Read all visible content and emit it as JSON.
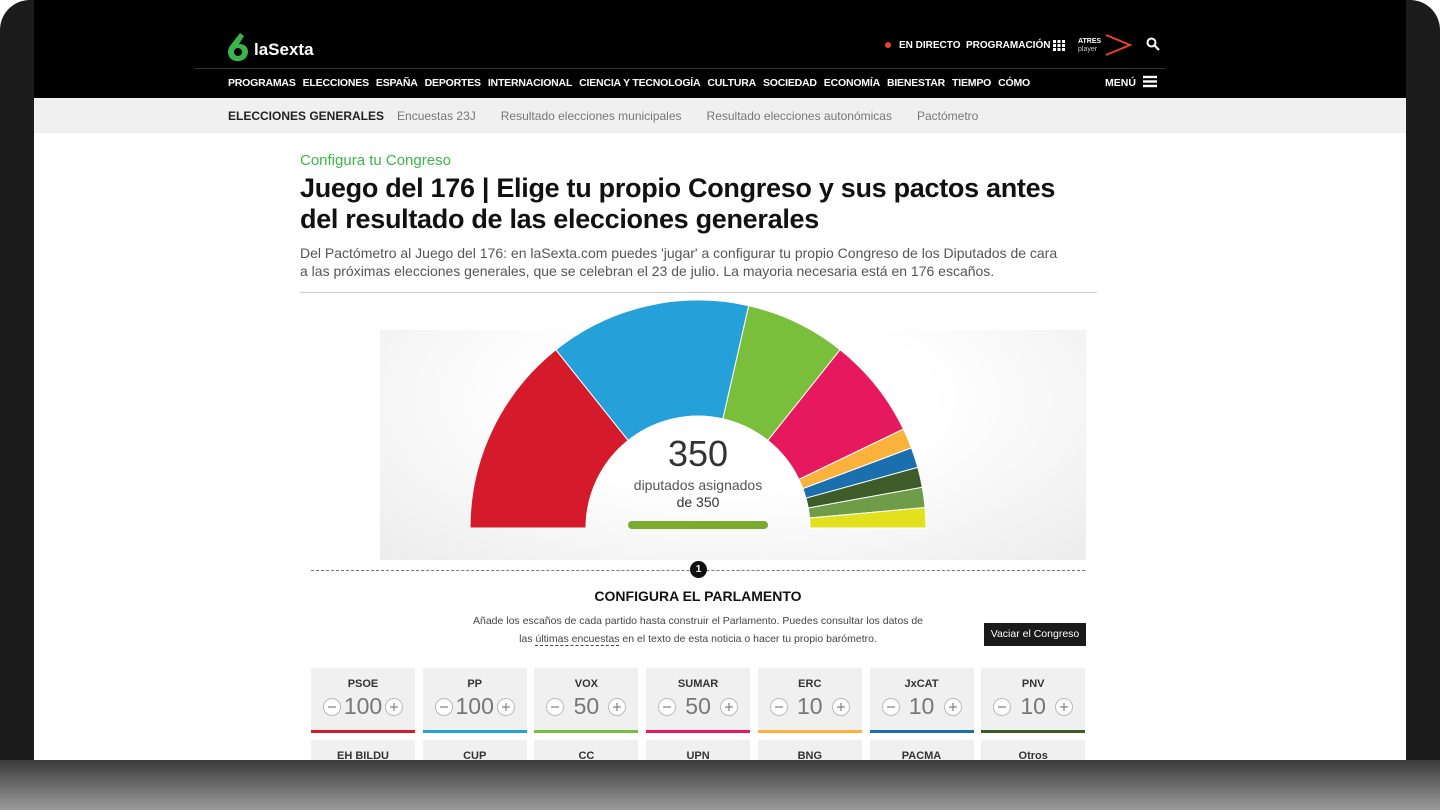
{
  "header": {
    "logo": "laSexta",
    "live": "EN DIRECTO",
    "schedule": "PROGRAMACIÓN",
    "player_top": "ATRES",
    "player_bottom": "player",
    "nav": [
      "PROGRAMAS",
      "ELECCIONES",
      "ESPAÑA",
      "DEPORTES",
      "INTERNACIONAL",
      "CIENCIA Y TECNOLOGÍA",
      "CULTURA",
      "SOCIEDAD",
      "ECONOMÍA",
      "BIENESTAR",
      "TIEMPO",
      "CÓMO"
    ],
    "menu": "MENÚ"
  },
  "subnav": {
    "active": "ELECCIONES GENERALES",
    "items": [
      "Encuestas 23J",
      "Resultado elecciones municipales",
      "Resultado elecciones autonómicas",
      "Pactómetro"
    ]
  },
  "article": {
    "kicker": "Configura tu Congreso",
    "title": "Juego del 176 | Elige tu propio Congreso y sus pactos antes del resultado de las elecciones generales",
    "lead": "Del Pactómetro al Juego del 176: en laSexta.com puedes 'jugar' a configurar tu propio Congreso de los Diputados de cara a las próximas elecciones generales, que se celebran el 23 de julio. La mayoria necesaria está en 176 escaños."
  },
  "chart_data": {
    "type": "hemicycle",
    "assigned": 350,
    "assigned_label": "diputados asignados",
    "of_label": "de 350",
    "parties": [
      {
        "name": "PSOE",
        "seats": 100,
        "color": "#d51a2b"
      },
      {
        "name": "PP",
        "seats": 100,
        "color": "#26a0d8"
      },
      {
        "name": "VOX",
        "seats": 50,
        "color": "#79bf3c"
      },
      {
        "name": "SUMAR",
        "seats": 50,
        "color": "#e6195f"
      },
      {
        "name": "ERC",
        "seats": 10,
        "color": "#fbb23c"
      },
      {
        "name": "JxCAT",
        "seats": 10,
        "color": "#1b6fae"
      },
      {
        "name": "PNV",
        "seats": 10,
        "color": "#3d5c2a"
      },
      {
        "name": "EH BILDU",
        "seats": 10,
        "color": "#6e9c48"
      },
      {
        "name": "CUP",
        "seats": 10,
        "color": "#e3e11e"
      },
      {
        "name": "CC",
        "seats": 0,
        "color": "#f4d03f"
      },
      {
        "name": "UPN",
        "seats": 0,
        "color": "#2f4f8f"
      },
      {
        "name": "BNG",
        "seats": 0,
        "color": "#7fb5e0"
      },
      {
        "name": "PACMA",
        "seats": 0,
        "color": "#58a558"
      },
      {
        "name": "Otros",
        "seats": 0,
        "color": "#999999"
      }
    ]
  },
  "configure": {
    "step": "1",
    "heading": "CONFIGURA EL PARLAMENTO",
    "text_before": "Añade los escaños de cada partido hasta construir el Parlamento. Puedes consultar los datos de las",
    "link": "últimas encuestas",
    "text_after": "en el texto de esta noticia o hacer tu propio barómetro.",
    "button": "Vaciar el Congreso"
  }
}
